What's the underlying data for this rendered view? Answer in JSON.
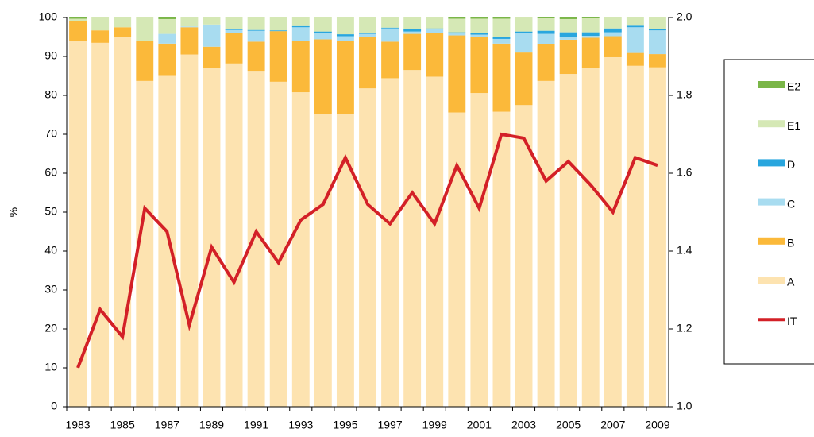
{
  "chart_data": {
    "type": "stacked-bar-line",
    "y_label": "%",
    "categories": [
      "1983",
      null,
      "1985",
      null,
      "1987",
      null,
      "1989",
      null,
      "1991",
      null,
      "1993",
      null,
      "1995",
      null,
      "1997",
      null,
      "1999",
      null,
      "2001",
      null,
      "2003",
      null,
      "2005",
      null,
      "2007",
      null,
      "2009"
    ],
    "series": [
      {
        "name": "A",
        "color": "#fde3b0",
        "values": [
          94,
          93.5,
          95,
          83.7,
          85,
          90.5,
          87,
          88.2,
          86.3,
          83.5,
          80.8,
          75.2,
          75.3,
          81.8,
          84.4,
          86.5,
          84.8,
          75.6,
          80.6,
          75.8,
          77.5,
          83.7,
          85.5,
          87,
          89.8,
          87.6,
          87.2
        ]
      },
      {
        "name": "B",
        "color": "#fbb93a",
        "values": [
          5,
          3.2,
          2.5,
          10.2,
          8.3,
          7,
          5.5,
          7.8,
          7.5,
          13,
          13.2,
          19.2,
          18.7,
          13.2,
          9.4,
          9.3,
          11.2,
          19.8,
          14.4,
          17.5,
          13.5,
          9.5,
          8.8,
          7.8,
          5.4,
          3.3,
          3.4
        ]
      },
      {
        "name": "C",
        "color": "#a8dcf0",
        "values": [
          0,
          0,
          0,
          0,
          2.5,
          0.2,
          5.7,
          0.8,
          2.8,
          0,
          3.5,
          1.7,
          1.2,
          0.8,
          3.4,
          0.6,
          1,
          0.5,
          0.6,
          1.2,
          5,
          2.6,
          0.7,
          0.5,
          1,
          6.6,
          6.1
        ]
      },
      {
        "name": "D",
        "color": "#29a6de",
        "values": [
          0,
          0,
          0,
          0,
          0,
          0,
          0,
          0.2,
          0.2,
          0.2,
          0.3,
          0.3,
          0.5,
          0.2,
          0.2,
          0.6,
          0.2,
          0.3,
          0.4,
          0.6,
          0.4,
          0.8,
          1.2,
          0.9,
          1,
          0.4,
          0.4
        ]
      },
      {
        "name": "E1",
        "color": "#d5e8b5",
        "values": [
          0.7,
          3.3,
          2.5,
          6.1,
          3.8,
          2.3,
          1.8,
          3,
          3.2,
          3.3,
          2.2,
          3.6,
          4.3,
          4,
          2.6,
          3,
          2.8,
          3.5,
          3.7,
          4.6,
          3.6,
          3.2,
          3.4,
          3.6,
          2.8,
          2.1,
          2.9
        ]
      },
      {
        "name": "E2",
        "color": "#7ab648",
        "values": [
          0.3,
          0,
          0,
          0,
          0.4,
          0,
          0,
          0,
          0,
          0,
          0,
          0,
          0,
          0,
          0,
          0,
          0,
          0.3,
          0.3,
          0.3,
          0,
          0.2,
          0.4,
          0.2,
          0,
          0,
          0
        ]
      },
      {
        "name": "IT",
        "color": "#d32027",
        "axis": "y2",
        "values": [
          1.1,
          1.25,
          1.18,
          1.51,
          1.45,
          1.21,
          1.41,
          1.32,
          1.45,
          1.37,
          1.48,
          1.52,
          1.64,
          1.52,
          1.47,
          1.55,
          1.47,
          1.62,
          1.51,
          1.7,
          1.69,
          1.58,
          1.63,
          1.57,
          1.5,
          1.64,
          1.62
        ]
      }
    ],
    "ylim": [
      0,
      100
    ],
    "yticks": [
      0,
      10,
      20,
      30,
      40,
      50,
      60,
      70,
      80,
      90,
      100
    ],
    "y2lim": [
      1,
      2
    ],
    "y2ticks": [
      {
        "value": 1,
        "label": "1.0"
      },
      1.2,
      1.4,
      1.6,
      1.8,
      {
        "value": 2,
        "label": "2.0"
      }
    ],
    "grid": false,
    "legend": "right"
  }
}
